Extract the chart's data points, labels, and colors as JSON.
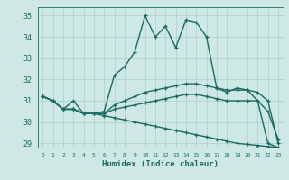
{
  "title": "",
  "xlabel": "Humidex (Indice chaleur)",
  "xlim": [
    -0.5,
    23.5
  ],
  "ylim": [
    28.8,
    35.4
  ],
  "yticks": [
    29,
    30,
    31,
    32,
    33,
    34,
    35
  ],
  "xticks": [
    0,
    1,
    2,
    3,
    4,
    5,
    6,
    7,
    8,
    9,
    10,
    11,
    12,
    13,
    14,
    15,
    16,
    17,
    18,
    19,
    20,
    21,
    22,
    23
  ],
  "background_color": "#cde8e5",
  "grid_color": "#aecfcc",
  "line_color": "#1a6b62",
  "line_width": 1.0,
  "marker": "+",
  "marker_size": 3.5,
  "series": [
    [
      31.2,
      31.0,
      30.6,
      31.0,
      30.4,
      30.4,
      30.5,
      32.2,
      32.6,
      33.3,
      35.0,
      34.0,
      34.5,
      33.5,
      34.8,
      34.7,
      34.0,
      31.6,
      31.4,
      31.6,
      31.5,
      31.0,
      29.0,
      28.8
    ],
    [
      31.2,
      31.0,
      30.6,
      30.6,
      30.4,
      30.4,
      30.4,
      30.8,
      31.0,
      31.2,
      31.4,
      31.5,
      31.6,
      31.7,
      31.8,
      31.8,
      31.7,
      31.6,
      31.5,
      31.5,
      31.5,
      31.4,
      31.0,
      29.0
    ],
    [
      31.2,
      31.0,
      30.6,
      30.6,
      30.4,
      30.4,
      30.4,
      30.6,
      30.7,
      30.8,
      30.9,
      31.0,
      31.1,
      31.2,
      31.3,
      31.3,
      31.2,
      31.1,
      31.0,
      31.0,
      31.0,
      31.0,
      30.5,
      29.2
    ],
    [
      31.2,
      31.0,
      30.6,
      30.6,
      30.4,
      30.4,
      30.3,
      30.2,
      30.1,
      30.0,
      29.9,
      29.8,
      29.7,
      29.6,
      29.5,
      29.4,
      29.3,
      29.2,
      29.1,
      29.0,
      28.95,
      28.9,
      28.85,
      28.8
    ]
  ]
}
